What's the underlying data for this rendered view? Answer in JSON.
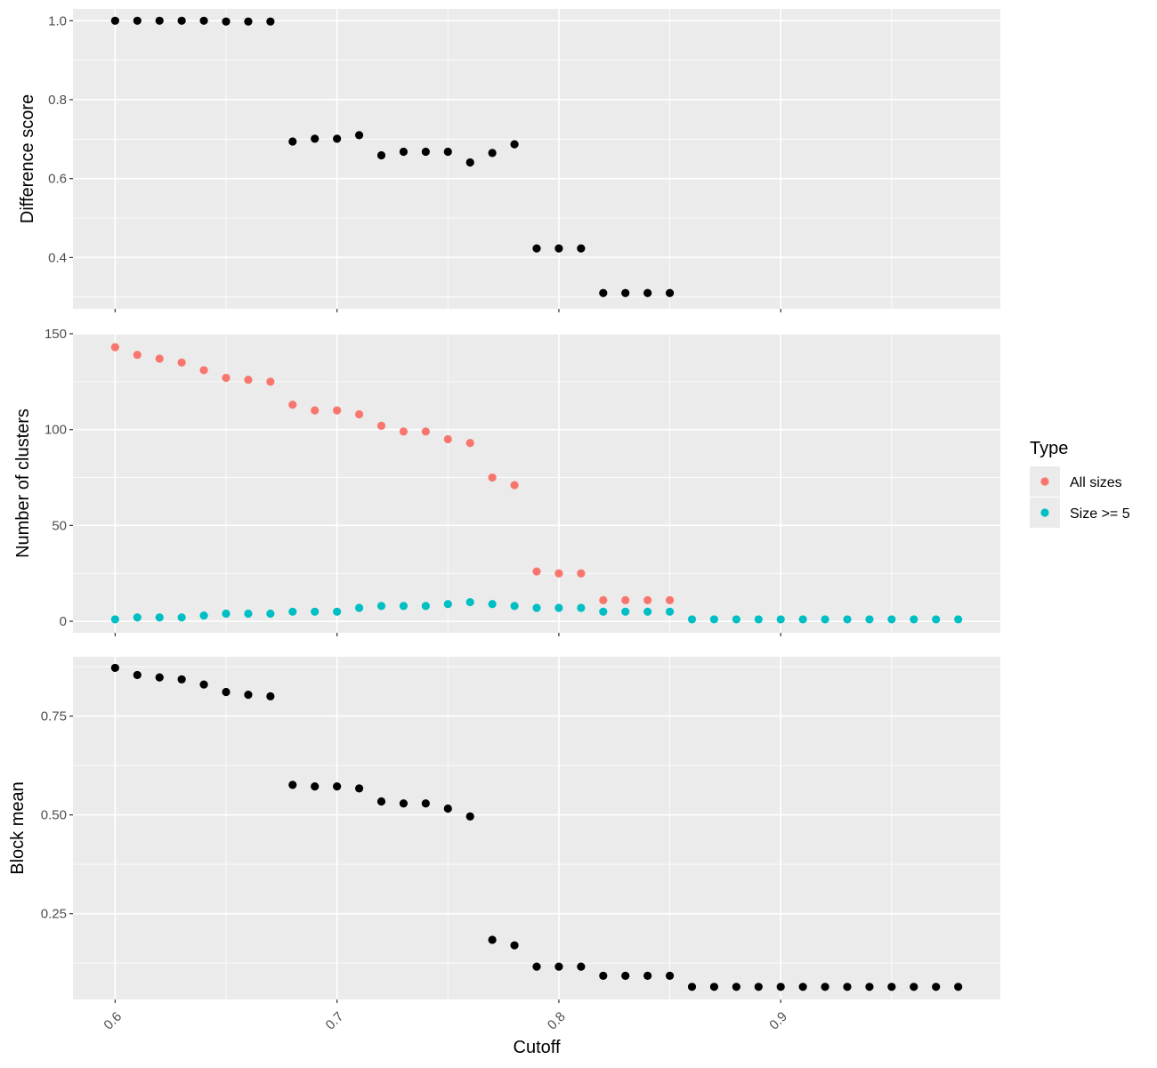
{
  "chart_data": [
    {
      "type": "scatter",
      "panel": "top",
      "ylabel": "Difference score",
      "ylim": [
        0.27,
        1.03
      ],
      "yticks": [
        0.4,
        0.6,
        0.8,
        1.0
      ],
      "ytick_labels": [
        "0.4",
        "0.6",
        "0.8",
        "1.0"
      ],
      "series": [
        {
          "name": "Difference score",
          "color": "#000000",
          "x": [
            0.6,
            0.61,
            0.62,
            0.63,
            0.64,
            0.65,
            0.66,
            0.67,
            0.68,
            0.69,
            0.7,
            0.71,
            0.72,
            0.73,
            0.74,
            0.75,
            0.76,
            0.77,
            0.78,
            0.79,
            0.8,
            0.81,
            0.82,
            0.83,
            0.84,
            0.85
          ],
          "y": [
            1.0,
            1.0,
            1.0,
            1.0,
            1.0,
            0.998,
            0.998,
            0.998,
            0.694,
            0.701,
            0.701,
            0.71,
            0.659,
            0.668,
            0.668,
            0.668,
            0.641,
            0.665,
            0.687,
            0.423,
            0.423,
            0.423,
            0.31,
            0.31,
            0.31,
            0.31
          ]
        }
      ]
    },
    {
      "type": "scatter",
      "panel": "middle",
      "ylabel": "Number of clusters",
      "ylim": [
        -6,
        150
      ],
      "yticks": [
        0,
        50,
        100,
        150
      ],
      "ytick_labels": [
        "0",
        "50",
        "100",
        "150"
      ],
      "series": [
        {
          "name": "All sizes",
          "color": "#F8766D",
          "x": [
            0.6,
            0.61,
            0.62,
            0.63,
            0.64,
            0.65,
            0.66,
            0.67,
            0.68,
            0.69,
            0.7,
            0.71,
            0.72,
            0.73,
            0.74,
            0.75,
            0.76,
            0.77,
            0.78,
            0.79,
            0.8,
            0.81,
            0.82,
            0.83,
            0.84,
            0.85
          ],
          "y": [
            143,
            139,
            137,
            135,
            131,
            127,
            126,
            125,
            113,
            110,
            110,
            108,
            102,
            99,
            99,
            95,
            93,
            75,
            71,
            26,
            25,
            25,
            11,
            11,
            11,
            11
          ]
        },
        {
          "name": "Size >= 5",
          "color": "#00BFC4",
          "x": [
            0.6,
            0.61,
            0.62,
            0.63,
            0.64,
            0.65,
            0.66,
            0.67,
            0.68,
            0.69,
            0.7,
            0.71,
            0.72,
            0.73,
            0.74,
            0.75,
            0.76,
            0.77,
            0.78,
            0.79,
            0.8,
            0.81,
            0.82,
            0.83,
            0.84,
            0.85,
            0.86,
            0.87,
            0.88,
            0.89,
            0.9,
            0.91,
            0.92,
            0.93,
            0.94,
            0.95,
            0.96,
            0.97,
            0.98
          ],
          "y": [
            1,
            2,
            2,
            2,
            3,
            4,
            4,
            4,
            5,
            5,
            5,
            7,
            8,
            8,
            8,
            9,
            10,
            9,
            8,
            7,
            7,
            7,
            5,
            5,
            5,
            5,
            1,
            1,
            1,
            1,
            1,
            1,
            1,
            1,
            1,
            1,
            1,
            1,
            1
          ]
        }
      ]
    },
    {
      "type": "scatter",
      "panel": "bottom",
      "ylabel": "Block mean",
      "xlabel": "Cutoff",
      "ylim": [
        0.033,
        0.9
      ],
      "yticks": [
        0.25,
        0.5,
        0.75
      ],
      "ytick_labels": [
        "0.25",
        "0.50",
        "0.75"
      ],
      "series": [
        {
          "name": "Block mean",
          "color": "#000000",
          "x": [
            0.6,
            0.61,
            0.62,
            0.63,
            0.64,
            0.65,
            0.66,
            0.67,
            0.68,
            0.69,
            0.7,
            0.71,
            0.72,
            0.73,
            0.74,
            0.75,
            0.76,
            0.77,
            0.78,
            0.79,
            0.8,
            0.81,
            0.82,
            0.83,
            0.84,
            0.85,
            0.86,
            0.87,
            0.88,
            0.89,
            0.9,
            0.91,
            0.92,
            0.93,
            0.94,
            0.95,
            0.96,
            0.97,
            0.98
          ],
          "y": [
            0.872,
            0.854,
            0.848,
            0.843,
            0.83,
            0.811,
            0.804,
            0.8,
            0.576,
            0.572,
            0.572,
            0.567,
            0.534,
            0.529,
            0.529,
            0.516,
            0.496,
            0.184,
            0.17,
            0.116,
            0.116,
            0.116,
            0.093,
            0.093,
            0.093,
            0.093,
            0.065,
            0.065,
            0.065,
            0.065,
            0.065,
            0.065,
            0.065,
            0.065,
            0.065,
            0.065,
            0.065,
            0.065,
            0.065
          ]
        }
      ]
    }
  ],
  "x_axis": {
    "label": "Cutoff",
    "xlim": [
      0.581,
      0.999
    ],
    "ticks": [
      0.6,
      0.7,
      0.8,
      0.9
    ],
    "tick_labels": [
      "0.6",
      "0.7",
      "0.8",
      "0.9"
    ]
  },
  "legend": {
    "title": "Type",
    "position": "right",
    "items": [
      {
        "label": "All sizes",
        "color": "#F8766D"
      },
      {
        "label": "Size >= 5",
        "color": "#00BFC4"
      }
    ]
  }
}
